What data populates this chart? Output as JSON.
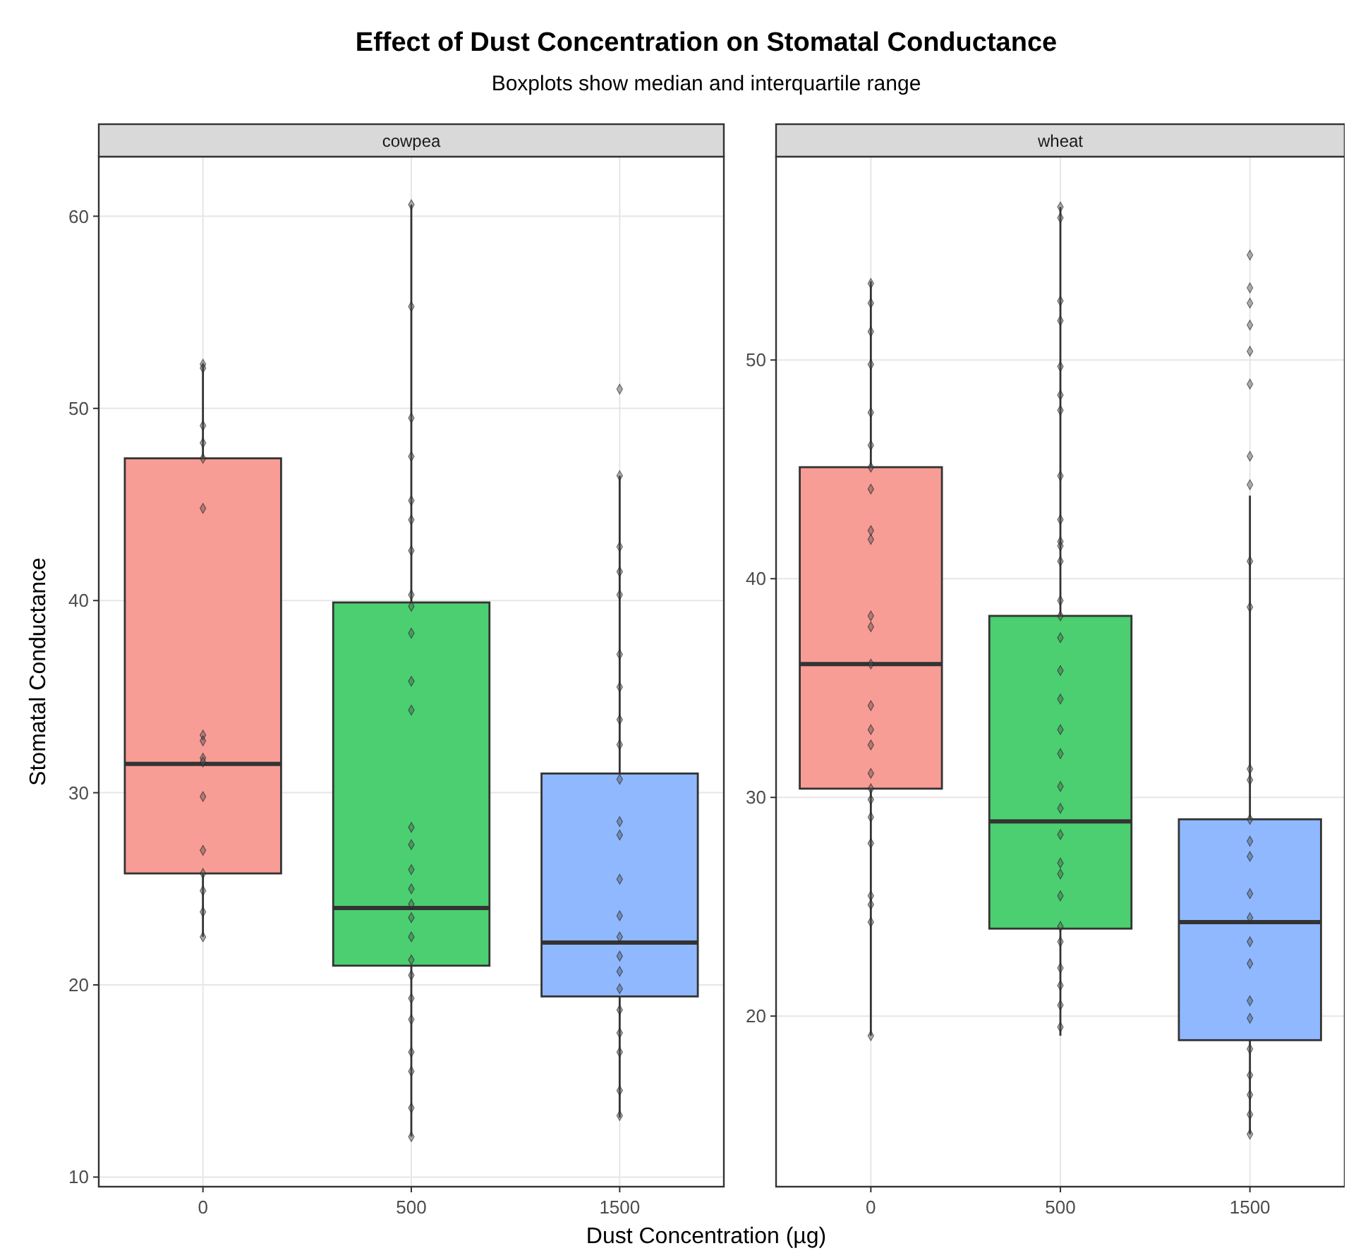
{
  "chart_data": [
    {
      "type": "box",
      "title": "Effect of Dust Concentration on Stomatal Conductance",
      "subtitle": "Boxplots show median and interquartile range",
      "xlabel": "Dust Concentration (µg)",
      "ylabel": "Stomatal Conductance",
      "annotations": [
        "cowpea"
      ],
      "categories": [
        "0",
        "500",
        "1500"
      ],
      "ylim": [
        9.5,
        63.1
      ],
      "yticks": [
        10,
        20,
        30,
        40,
        50,
        60
      ],
      "grid": true,
      "legend": false,
      "series": [
        {
          "type": "box",
          "colors": [
            "#f89c96",
            "#4ccf70",
            "#8fb8fe"
          ],
          "boxes": [
            {
              "low": 22.5,
              "q1": 25.8,
              "median": 31.5,
              "q3": 47.4,
              "high": 52.3
            },
            {
              "low": 12.1,
              "q1": 21,
              "median": 24,
              "q3": 39.9,
              "high": 60.6
            },
            {
              "low": 13.1,
              "q1": 19.4,
              "median": 22.2,
              "q3": 31,
              "high": 46.5
            }
          ]
        },
        {
          "type": "scatter",
          "color": "#555555",
          "marker": "diamond",
          "values": [
            52.3,
            60.6,
            51
          ]
        },
        {
          "type": "scatter",
          "color": "#555555",
          "marker": "diamond",
          "values": [
            52.1,
            55.3,
            46.5
          ]
        },
        {
          "type": "scatter",
          "color": "#555555",
          "marker": "diamond",
          "values": [
            49.1,
            49.5,
            42.8
          ]
        },
        {
          "type": "scatter",
          "color": "#555555",
          "marker": "diamond",
          "values": [
            48.2,
            47.5,
            41.5
          ]
        },
        {
          "type": "scatter",
          "color": "#555555",
          "marker": "diamond",
          "values": [
            47.4,
            45.2,
            40.3
          ]
        },
        {
          "type": "scatter",
          "color": "#555555",
          "marker": "diamond",
          "values": [
            44.8,
            44.2,
            37.2
          ]
        },
        {
          "type": "scatter",
          "color": "#555555",
          "marker": "diamond",
          "values": [
            33,
            42.6,
            35.5
          ]
        },
        {
          "type": "scatter",
          "color": "#555555",
          "marker": "diamond",
          "values": [
            32.7,
            40.3,
            33.8
          ]
        },
        {
          "type": "scatter",
          "color": "#555555",
          "marker": "diamond",
          "values": [
            31.8,
            39.7,
            32.5
          ]
        },
        {
          "type": "scatter",
          "color": "#555555",
          "marker": "diamond",
          "values": [
            31.6,
            38.3,
            30.7
          ]
        },
        {
          "type": "scatter",
          "color": "#555555",
          "marker": "diamond",
          "values": [
            29.8,
            35.8,
            28.5
          ]
        },
        {
          "type": "scatter",
          "color": "#555555",
          "marker": "diamond",
          "values": [
            27,
            34.3,
            27.8
          ]
        },
        {
          "type": "scatter",
          "color": "#555555",
          "marker": "diamond",
          "values": [
            25.8,
            28.2,
            25.5
          ]
        },
        {
          "type": "scatter",
          "color": "#555555",
          "marker": "diamond",
          "values": [
            24.9,
            27.3,
            23.6
          ]
        },
        {
          "type": "scatter",
          "color": "#555555",
          "marker": "diamond",
          "values": [
            23.8,
            26,
            22.5
          ]
        },
        {
          "type": "scatter",
          "color": "#555555",
          "marker": "diamond",
          "values": [
            22.5,
            25,
            21.5
          ]
        },
        {
          "type": "scatter",
          "color": "#555555",
          "marker": "diamond",
          "values": [
            null,
            24.2,
            20.7
          ]
        },
        {
          "type": "scatter",
          "color": "#555555",
          "marker": "diamond",
          "values": [
            null,
            23.5,
            19.8
          ]
        },
        {
          "type": "scatter",
          "color": "#555555",
          "marker": "diamond",
          "values": [
            null,
            22.5,
            18.7
          ]
        },
        {
          "type": "scatter",
          "color": "#555555",
          "marker": "diamond",
          "values": [
            null,
            21.3,
            17.5
          ]
        },
        {
          "type": "scatter",
          "color": "#555555",
          "marker": "diamond",
          "values": [
            null,
            20.5,
            16.5
          ]
        },
        {
          "type": "scatter",
          "color": "#555555",
          "marker": "diamond",
          "values": [
            null,
            19.3,
            14.5
          ]
        },
        {
          "type": "scatter",
          "color": "#555555",
          "marker": "diamond",
          "values": [
            null,
            18.2,
            13.2
          ]
        },
        {
          "type": "scatter",
          "color": "#555555",
          "marker": "diamond",
          "values": [
            null,
            16.5,
            null
          ]
        },
        {
          "type": "scatter",
          "color": "#555555",
          "marker": "diamond",
          "values": [
            null,
            15.5,
            null
          ]
        },
        {
          "type": "scatter",
          "color": "#555555",
          "marker": "diamond",
          "values": [
            null,
            13.6,
            null
          ]
        },
        {
          "type": "scatter",
          "color": "#555555",
          "marker": "diamond",
          "values": [
            null,
            12.1,
            null
          ]
        }
      ]
    },
    {
      "type": "box",
      "annotations": [
        "wheat"
      ],
      "categories": [
        "0",
        "500",
        "1500"
      ],
      "ylim": [
        12.2,
        59.3
      ],
      "yticks": [
        20,
        30,
        40,
        50
      ],
      "grid": true,
      "legend": false,
      "series": [
        {
          "type": "box",
          "colors": [
            "#f89c96",
            "#4ccf70",
            "#8fb8fe"
          ],
          "boxes": [
            {
              "low": 19.1,
              "q1": 30.4,
              "median": 36.1,
              "q3": 45.1,
              "high": 53.6
            },
            {
              "low": 19.1,
              "q1": 24,
              "median": 28.9,
              "q3": 38.3,
              "high": 57
            },
            {
              "low": 14.6,
              "q1": 18.9,
              "median": 24.3,
              "q3": 29,
              "high": 43.8
            }
          ]
        },
        {
          "type": "scatter",
          "color": "#555555",
          "marker": "diamond",
          "values": [
            53.5,
            57,
            54.8
          ]
        },
        {
          "type": "scatter",
          "color": "#555555",
          "marker": "diamond",
          "values": [
            52.6,
            56.5,
            53.3
          ]
        },
        {
          "type": "scatter",
          "color": "#555555",
          "marker": "diamond",
          "values": [
            51.3,
            52.7,
            52.6
          ]
        },
        {
          "type": "scatter",
          "color": "#555555",
          "marker": "diamond",
          "values": [
            49.8,
            51.8,
            51.6
          ]
        },
        {
          "type": "scatter",
          "color": "#555555",
          "marker": "diamond",
          "values": [
            47.6,
            49.7,
            50.4
          ]
        },
        {
          "type": "scatter",
          "color": "#555555",
          "marker": "diamond",
          "values": [
            46.1,
            48.4,
            48.9
          ]
        },
        {
          "type": "scatter",
          "color": "#555555",
          "marker": "diamond",
          "values": [
            45.1,
            47.7,
            45.6
          ]
        },
        {
          "type": "scatter",
          "color": "#555555",
          "marker": "diamond",
          "values": [
            44.1,
            44.7,
            44.3
          ]
        },
        {
          "type": "scatter",
          "color": "#555555",
          "marker": "diamond",
          "values": [
            42.2,
            42.7,
            40.8
          ]
        },
        {
          "type": "scatter",
          "color": "#555555",
          "marker": "diamond",
          "values": [
            41.8,
            41.7,
            38.7
          ]
        },
        {
          "type": "scatter",
          "color": "#555555",
          "marker": "diamond",
          "values": [
            38.3,
            41.5,
            31.3
          ]
        },
        {
          "type": "scatter",
          "color": "#555555",
          "marker": "diamond",
          "values": [
            37.8,
            40.8,
            30.8
          ]
        },
        {
          "type": "scatter",
          "color": "#555555",
          "marker": "diamond",
          "values": [
            36.1,
            39,
            29
          ]
        },
        {
          "type": "scatter",
          "color": "#555555",
          "marker": "diamond",
          "values": [
            34.2,
            38.3,
            28
          ]
        },
        {
          "type": "scatter",
          "color": "#555555",
          "marker": "diamond",
          "values": [
            33.1,
            37.3,
            27.3
          ]
        },
        {
          "type": "scatter",
          "color": "#555555",
          "marker": "diamond",
          "values": [
            32.4,
            35.8,
            25.6
          ]
        },
        {
          "type": "scatter",
          "color": "#555555",
          "marker": "diamond",
          "values": [
            31.1,
            34.5,
            24.5
          ]
        },
        {
          "type": "scatter",
          "color": "#555555",
          "marker": "diamond",
          "values": [
            30.4,
            33.1,
            23.4
          ]
        },
        {
          "type": "scatter",
          "color": "#555555",
          "marker": "diamond",
          "values": [
            29.9,
            32,
            22.4
          ]
        },
        {
          "type": "scatter",
          "color": "#555555",
          "marker": "diamond",
          "values": [
            29.1,
            30.5,
            20.7
          ]
        },
        {
          "type": "scatter",
          "color": "#555555",
          "marker": "diamond",
          "values": [
            27.9,
            29.5,
            19.9
          ]
        },
        {
          "type": "scatter",
          "color": "#555555",
          "marker": "diamond",
          "values": [
            25.5,
            28.3,
            18.5
          ]
        },
        {
          "type": "scatter",
          "color": "#555555",
          "marker": "diamond",
          "values": [
            25.1,
            27,
            17.3
          ]
        },
        {
          "type": "scatter",
          "color": "#555555",
          "marker": "diamond",
          "values": [
            24.3,
            26.5,
            16.4
          ]
        },
        {
          "type": "scatter",
          "color": "#555555",
          "marker": "diamond",
          "values": [
            19.1,
            25.5,
            15.5
          ]
        },
        {
          "type": "scatter",
          "color": "#555555",
          "marker": "diamond",
          "values": [
            null,
            24.1,
            14.6
          ]
        },
        {
          "type": "scatter",
          "color": "#555555",
          "marker": "diamond",
          "values": [
            null,
            23.4,
            null
          ]
        },
        {
          "type": "scatter",
          "color": "#555555",
          "marker": "diamond",
          "values": [
            null,
            22.2,
            null
          ]
        },
        {
          "type": "scatter",
          "color": "#555555",
          "marker": "diamond",
          "values": [
            null,
            21.4,
            null
          ]
        },
        {
          "type": "scatter",
          "color": "#555555",
          "marker": "diamond",
          "values": [
            null,
            20.5,
            null
          ]
        },
        {
          "type": "scatter",
          "color": "#555555",
          "marker": "diamond",
          "values": [
            null,
            19.5,
            null
          ]
        }
      ]
    }
  ]
}
